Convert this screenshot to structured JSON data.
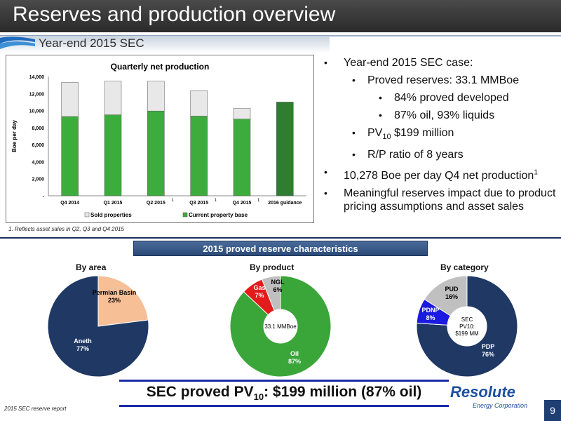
{
  "title": "Reserves and production overview",
  "subtitle": "Year-end 2015 SEC",
  "chart_data": {
    "type": "bar",
    "title": "Quarterly net production",
    "ylabel": "Boe per day",
    "ylim": [
      0,
      14000
    ],
    "yticks": [
      "-",
      "2,000",
      "4,000",
      "6,000",
      "8,000",
      "10,000",
      "12,000",
      "14,000"
    ],
    "categories": [
      "Q4 2014",
      "Q1 2015",
      "Q2 2015",
      "Q3 2015",
      "Q4 2015",
      "2016 guidance"
    ],
    "category_superscripts": [
      "",
      "",
      "1",
      "1",
      "1",
      ""
    ],
    "series": [
      {
        "name": "Current property base",
        "values": [
          9300,
          9500,
          9950,
          9350,
          9000,
          11000
        ],
        "color": "#3cad3c"
      },
      {
        "name": "Sold properties",
        "values": [
          4000,
          3950,
          3500,
          3000,
          1278,
          0
        ],
        "color": "#e8e8e8"
      }
    ],
    "guidance_color": "#2e7d32",
    "legend": [
      "Sold properties",
      "Current property base"
    ],
    "legend_position": "bottom"
  },
  "footnote": "1. Reflects asset sales in Q2, Q3 and Q4 2015",
  "bullets": [
    {
      "level": 1,
      "text": "Year-end 2015 SEC case:"
    },
    {
      "level": 2,
      "text": "Proved reserves: 33.1 MMBoe"
    },
    {
      "level": 3,
      "text": "84% proved developed"
    },
    {
      "level": 3,
      "text": "87% oil, 93% liquids"
    },
    {
      "level": 2,
      "pre": "PV",
      "sub": "10",
      "post": " $199 million"
    },
    {
      "level": 2,
      "text": "R/P ratio of 8 years"
    },
    {
      "level": 1,
      "text": "10,278 Boe per day Q4 net production",
      "sup": "1"
    },
    {
      "level": 1,
      "text": "Meaningful reserves impact due to product pricing assumptions and asset sales"
    }
  ],
  "section_title": "2015 proved reserve characteristics",
  "pies": {
    "area": {
      "title": "By area",
      "slices": [
        {
          "label": "Permian Basin",
          "pct_label": "23%",
          "value": 23,
          "color": "#f7bf96"
        },
        {
          "label": "Aneth",
          "pct_label": "77%",
          "value": 77,
          "color": "#1f3864"
        }
      ]
    },
    "product": {
      "title": "By product",
      "center_label": "33.1 MMBoe",
      "slices": [
        {
          "label": "Oil",
          "pct_label": "87%",
          "value": 87,
          "color": "#3aa639"
        },
        {
          "label": "Gas",
          "pct_label": "7%",
          "value": 7,
          "color": "#e41b1b"
        },
        {
          "label": "NGL",
          "pct_label": "6%",
          "value": 6,
          "color": "#bfbfbf"
        }
      ]
    },
    "category": {
      "title": "By category",
      "center_label": [
        "SEC",
        "PV10:",
        "$199 MM"
      ],
      "slices": [
        {
          "label": "PDP",
          "pct_label": "76%",
          "value": 76,
          "color": "#1f3864"
        },
        {
          "label": "PDNP",
          "pct_label": "8%",
          "value": 8,
          "color": "#1a1ae0"
        },
        {
          "label": "PUD",
          "pct_label": "16%",
          "value": 16,
          "color": "#c0c0c0"
        }
      ]
    }
  },
  "pv_line": {
    "pre": "SEC proved PV",
    "sub": "10",
    "post": ": $199 million (87% oil)"
  },
  "report_note": "2015 SEC reserve report",
  "logo": {
    "name": "Resolute",
    "sub": "Energy Corporation"
  },
  "page_number": "9"
}
